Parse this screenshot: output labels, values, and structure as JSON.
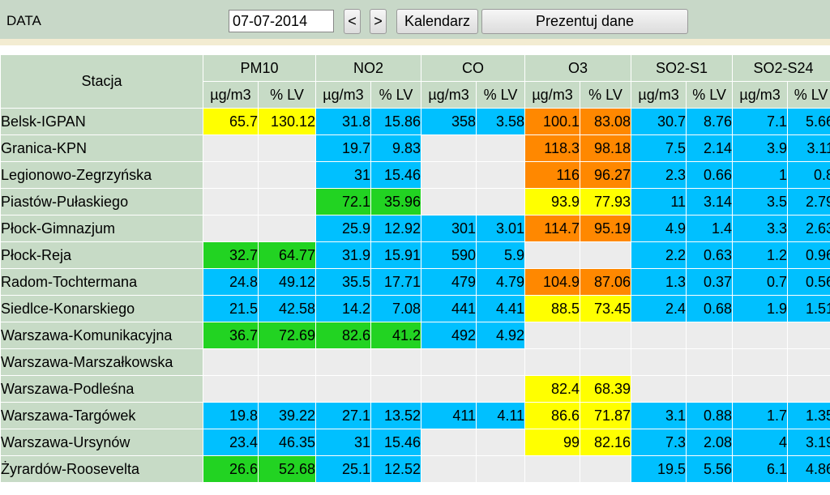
{
  "toolbar": {
    "date_label": "DATA",
    "date_value": "07-07-2014",
    "prev_label": "<",
    "next_label": ">",
    "calendar_label": "Kalendarz",
    "show_label": "Prezentuj dane"
  },
  "table": {
    "station_header": "Stacja",
    "groups": [
      "PM10",
      "NO2",
      "CO",
      "O3",
      "SO2-S1",
      "SO2-S24"
    ],
    "units": [
      "µg/m3",
      "% LV"
    ],
    "colors": {
      "b": "#00c0ff",
      "g": "#22d322",
      "y": "#ffff00",
      "o": "#ff8800",
      "e": "#ececec"
    },
    "rows": [
      {
        "station": "Belsk-IGPAN",
        "cells": [
          [
            "65.7",
            "130.12",
            "y"
          ],
          [
            "31.8",
            "15.86",
            "b"
          ],
          [
            "358",
            "3.58",
            "b"
          ],
          [
            "100.1",
            "83.08",
            "o"
          ],
          [
            "30.7",
            "8.76",
            "b"
          ],
          [
            "7.1",
            "5.66",
            "b"
          ]
        ]
      },
      {
        "station": "Granica-KPN",
        "cells": [
          [
            "",
            "",
            "e"
          ],
          [
            "19.7",
            "9.83",
            "b"
          ],
          [
            "",
            "",
            "e"
          ],
          [
            "118.3",
            "98.18",
            "o"
          ],
          [
            "7.5",
            "2.14",
            "b"
          ],
          [
            "3.9",
            "3.11",
            "b"
          ]
        ]
      },
      {
        "station": "Legionowo-Zegrzyńska",
        "cells": [
          [
            "",
            "",
            "e"
          ],
          [
            "31",
            "15.46",
            "b"
          ],
          [
            "",
            "",
            "e"
          ],
          [
            "116",
            "96.27",
            "o"
          ],
          [
            "2.3",
            "0.66",
            "b"
          ],
          [
            "1",
            "0.8",
            "b"
          ]
        ]
      },
      {
        "station": "Piastów-Pułaskiego",
        "cells": [
          [
            "",
            "",
            "e"
          ],
          [
            "72.1",
            "35.96",
            "g"
          ],
          [
            "",
            "",
            "e"
          ],
          [
            "93.9",
            "77.93",
            "y"
          ],
          [
            "11",
            "3.14",
            "b"
          ],
          [
            "3.5",
            "2.79",
            "b"
          ]
        ]
      },
      {
        "station": "Płock-Gimnazjum",
        "cells": [
          [
            "",
            "",
            "e"
          ],
          [
            "25.9",
            "12.92",
            "b"
          ],
          [
            "301",
            "3.01",
            "b"
          ],
          [
            "114.7",
            "95.19",
            "o"
          ],
          [
            "4.9",
            "1.4",
            "b"
          ],
          [
            "3.3",
            "2.63",
            "b"
          ]
        ]
      },
      {
        "station": "Płock-Reja",
        "cells": [
          [
            "32.7",
            "64.77",
            "g"
          ],
          [
            "31.9",
            "15.91",
            "b"
          ],
          [
            "590",
            "5.9",
            "b"
          ],
          [
            "",
            "",
            "e"
          ],
          [
            "2.2",
            "0.63",
            "b"
          ],
          [
            "1.2",
            "0.96",
            "b"
          ]
        ]
      },
      {
        "station": "Radom-Tochtermana",
        "cells": [
          [
            "24.8",
            "49.12",
            "b"
          ],
          [
            "35.5",
            "17.71",
            "b"
          ],
          [
            "479",
            "4.79",
            "b"
          ],
          [
            "104.9",
            "87.06",
            "o"
          ],
          [
            "1.3",
            "0.37",
            "b"
          ],
          [
            "0.7",
            "0.56",
            "b"
          ]
        ]
      },
      {
        "station": "Siedlce-Konarskiego",
        "cells": [
          [
            "21.5",
            "42.58",
            "b"
          ],
          [
            "14.2",
            "7.08",
            "b"
          ],
          [
            "441",
            "4.41",
            "b"
          ],
          [
            "88.5",
            "73.45",
            "y"
          ],
          [
            "2.4",
            "0.68",
            "b"
          ],
          [
            "1.9",
            "1.51",
            "b"
          ]
        ]
      },
      {
        "station": "Warszawa-Komunikacyjna",
        "cells": [
          [
            "36.7",
            "72.69",
            "g"
          ],
          [
            "82.6",
            "41.2",
            "g"
          ],
          [
            "492",
            "4.92",
            "b"
          ],
          [
            "",
            "",
            "e"
          ],
          [
            "",
            "",
            "e"
          ],
          [
            "",
            "",
            "e"
          ]
        ]
      },
      {
        "station": "Warszawa-Marszałkowska",
        "cells": [
          [
            "",
            "",
            "e"
          ],
          [
            "",
            "",
            "e"
          ],
          [
            "",
            "",
            "e"
          ],
          [
            "",
            "",
            "e"
          ],
          [
            "",
            "",
            "e"
          ],
          [
            "",
            "",
            "e"
          ]
        ]
      },
      {
        "station": "Warszawa-Podleśna",
        "cells": [
          [
            "",
            "",
            "e"
          ],
          [
            "",
            "",
            "e"
          ],
          [
            "",
            "",
            "e"
          ],
          [
            "82.4",
            "68.39",
            "y"
          ],
          [
            "",
            "",
            "e"
          ],
          [
            "",
            "",
            "e"
          ]
        ]
      },
      {
        "station": "Warszawa-Targówek",
        "cells": [
          [
            "19.8",
            "39.22",
            "b"
          ],
          [
            "27.1",
            "13.52",
            "b"
          ],
          [
            "411",
            "4.11",
            "b"
          ],
          [
            "86.6",
            "71.87",
            "y"
          ],
          [
            "3.1",
            "0.88",
            "b"
          ],
          [
            "1.7",
            "1.35",
            "b"
          ]
        ]
      },
      {
        "station": "Warszawa-Ursynów",
        "cells": [
          [
            "23.4",
            "46.35",
            "b"
          ],
          [
            "31",
            "15.46",
            "b"
          ],
          [
            "",
            "",
            "e"
          ],
          [
            "99",
            "82.16",
            "y"
          ],
          [
            "7.3",
            "2.08",
            "b"
          ],
          [
            "4",
            "3.19",
            "b"
          ]
        ]
      },
      {
        "station": "Żyrardów-Roosevelta",
        "cells": [
          [
            "26.6",
            "52.68",
            "g"
          ],
          [
            "25.1",
            "12.52",
            "b"
          ],
          [
            "",
            "",
            "e"
          ],
          [
            "",
            "",
            "e"
          ],
          [
            "19.5",
            "5.56",
            "b"
          ],
          [
            "6.1",
            "4.86",
            "b"
          ]
        ]
      }
    ]
  }
}
